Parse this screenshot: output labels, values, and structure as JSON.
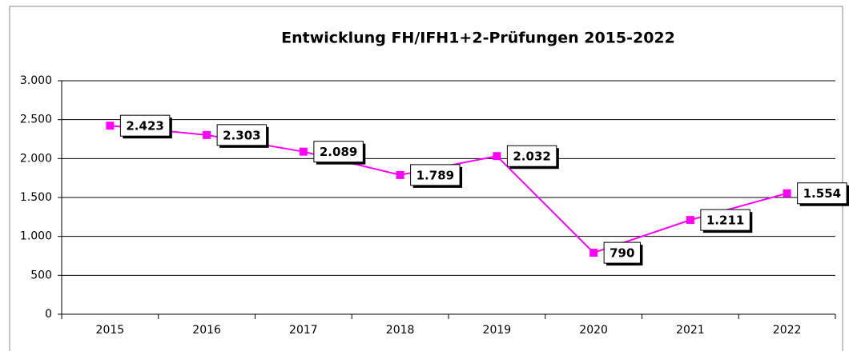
{
  "chart_data": {
    "type": "line",
    "title": "Entwicklung FH/IFH1+2-Prüfungen 2015-2022",
    "categories": [
      "2015",
      "2016",
      "2017",
      "2018",
      "2019",
      "2020",
      "2021",
      "2022"
    ],
    "series": [
      {
        "name": "FH/IFH1+2-Prüfungen",
        "color": "#ff00ff",
        "values": [
          2423,
          2303,
          2089,
          1789,
          2032,
          790,
          1211,
          1554
        ],
        "value_labels": [
          "2.423",
          "2.303",
          "2.089",
          "1.789",
          "2.032",
          "790",
          "1.211",
          "1.554"
        ]
      }
    ],
    "ylim": [
      0,
      3000
    ],
    "yticks": [
      0,
      500,
      {
        "value": 1000,
        "label": "1.000"
      },
      {
        "value": 1500,
        "label": "1.500"
      },
      {
        "value": 2000,
        "label": "2.000"
      },
      {
        "value": 2500,
        "label": "2.500"
      },
      {
        "value": 3000,
        "label": "3.000"
      }
    ],
    "grid": true
  }
}
